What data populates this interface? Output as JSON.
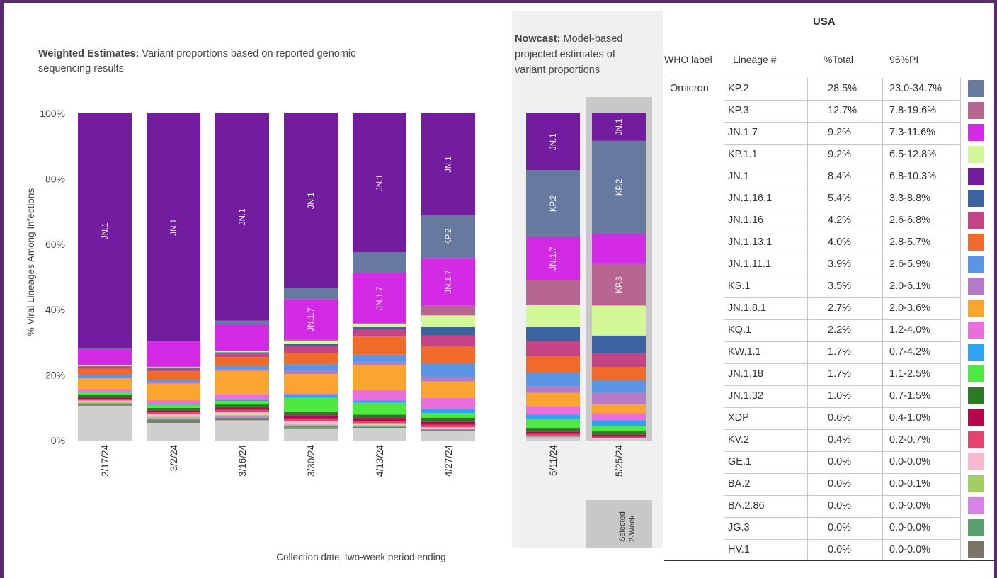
{
  "chart": {
    "weighted_title_bold": "Weighted Estimates:",
    "weighted_title_rest_1": " Variant proportions based on reported genomic",
    "weighted_title_rest_2": "sequencing results",
    "nowcast_title_bold": "Nowcast:",
    "nowcast_title_rest_1": " Model-based",
    "nowcast_title_rest_2": "projected estimates of",
    "nowcast_title_rest_3": "variant proportions",
    "selected_label_1": "Selected",
    "selected_label_2": "2-Week"
  },
  "chart_data": {
    "type": "bar",
    "stacked": true,
    "ylabel": "% Viral Lineages Among Infections",
    "xlabel": "Collection date, two-week period ending",
    "ylim": [
      0,
      100
    ],
    "yticks": [
      "0%",
      "20%",
      "40%",
      "60%",
      "80%",
      "100%"
    ],
    "categories": [
      "2/17/24",
      "3/2/24",
      "3/16/24",
      "3/30/24",
      "4/13/24",
      "4/27/24",
      "5/11/24",
      "5/25/24"
    ],
    "selected_category": "5/25/24",
    "nowcast_categories": [
      "5/11/24",
      "5/25/24"
    ],
    "series": [
      {
        "name": "Other",
        "color": "#cfcfcf",
        "values": [
          11.4,
          5.6,
          6.4,
          3.8,
          3.9,
          2.9,
          1.0,
          0.8
        ]
      },
      {
        "name": "HV.1",
        "color": "#7b7364",
        "values": [
          0.3,
          0.6,
          0.4,
          0.3,
          0.2,
          0.2,
          0.1,
          0.0
        ]
      },
      {
        "name": "JG.3",
        "color": "#5aa06e",
        "values": [
          0.3,
          0.5,
          0.5,
          0.3,
          0.2,
          0.2,
          0.1,
          0.0
        ]
      },
      {
        "name": "BA.2.86",
        "color": "#d782e6",
        "values": [
          0.3,
          0.4,
          0.4,
          0.3,
          0.2,
          0.2,
          0.1,
          0.0
        ]
      },
      {
        "name": "BA.2",
        "color": "#a3cf62",
        "values": [
          0.3,
          0.4,
          0.4,
          0.3,
          0.2,
          0.2,
          0.1,
          0.0
        ]
      },
      {
        "name": "GE.1",
        "color": "#f6b9cf",
        "values": [
          0.5,
          0.8,
          0.9,
          1.0,
          0.6,
          0.3,
          0.1,
          0.0
        ]
      },
      {
        "name": "KV.2",
        "color": "#e2446b",
        "values": [
          0.5,
          0.6,
          0.7,
          0.8,
          0.7,
          0.8,
          0.5,
          0.4
        ]
      },
      {
        "name": "XDP",
        "color": "#b5074d",
        "values": [
          0.5,
          0.6,
          0.8,
          1.0,
          0.9,
          0.9,
          0.7,
          0.6
        ]
      },
      {
        "name": "JN.1.32",
        "color": "#2c7a25",
        "values": [
          0.8,
          0.8,
          0.9,
          1.2,
          1.0,
          1.2,
          1.1,
          1.0
        ]
      },
      {
        "name": "JN.1.18",
        "color": "#4ee843",
        "values": [
          0.8,
          0.9,
          1.1,
          4.2,
          3.6,
          1.4,
          2.5,
          1.7
        ]
      },
      {
        "name": "KW.1.1",
        "color": "#2ea3f2",
        "values": [
          0.3,
          0.3,
          0.4,
          0.8,
          0.7,
          1.2,
          1.5,
          1.7
        ]
      },
      {
        "name": "KQ.1",
        "color": "#ea6edc",
        "values": [
          0.8,
          1.2,
          1.8,
          0.5,
          3.2,
          3.3,
          2.5,
          2.2
        ]
      },
      {
        "name": "JN.1.8.1",
        "color": "#f9a52f",
        "values": [
          3.5,
          5.2,
          7.3,
          6.0,
          7.5,
          5.0,
          4.0,
          2.7
        ]
      },
      {
        "name": "KS.1",
        "color": "#b77ac8",
        "values": [
          0.3,
          0.4,
          0.5,
          1.0,
          1.1,
          1.3,
          2.0,
          3.5
        ]
      },
      {
        "name": "JN.1.11.1",
        "color": "#5b95e6",
        "values": [
          0.8,
          0.8,
          1.1,
          2.0,
          2.2,
          4.2,
          4.0,
          3.9
        ]
      },
      {
        "name": "JN.1.13.1",
        "color": "#f06b2a",
        "values": [
          2.1,
          2.7,
          2.8,
          3.5,
          5.5,
          5.1,
          5.0,
          4.0
        ]
      },
      {
        "name": "JN.1.16",
        "color": "#c64385",
        "values": [
          0.6,
          0.8,
          1.1,
          2.2,
          2.3,
          3.3,
          4.5,
          4.2
        ]
      },
      {
        "name": "JN.1.16.1",
        "color": "#3a63a0",
        "values": [
          0.2,
          0.3,
          0.4,
          0.6,
          0.8,
          2.6,
          4.2,
          5.4
        ]
      },
      {
        "name": "KP.1.1",
        "color": "#d4f797",
        "values": [
          0.2,
          0.2,
          0.3,
          1.0,
          0.8,
          3.4,
          6.5,
          9.2
        ]
      },
      {
        "name": "KP.3",
        "color": "#b76690",
        "values": [
          0.1,
          0.2,
          0.1,
          0.3,
          0.2,
          2.9,
          7.5,
          12.7
        ]
      },
      {
        "name": "JN.1.7",
        "color": "#d32be5",
        "values": [
          5.3,
          7.9,
          8.3,
          12.5,
          15.2,
          14.4,
          12.9,
          9.2
        ]
      },
      {
        "name": "KP.2",
        "color": "#66799f",
        "values": [
          0.1,
          0.1,
          1.3,
          3.5,
          6.4,
          12.8,
          20.0,
          28.5
        ]
      },
      {
        "name": "JN.1",
        "color": "#721da0",
        "values": [
          77.0,
          71.7,
          65.5,
          53.8,
          42.4,
          30.8,
          17.0,
          8.4
        ]
      }
    ],
    "bar_labels": [
      {
        "category": "2/17/24",
        "series": "JN.1",
        "text": "JN.1"
      },
      {
        "category": "3/2/24",
        "series": "JN.1",
        "text": "JN.1"
      },
      {
        "category": "3/16/24",
        "series": "JN.1",
        "text": "JN.1"
      },
      {
        "category": "3/30/24",
        "series": "JN.1",
        "text": "JN.1"
      },
      {
        "category": "3/30/24",
        "series": "JN.1.7",
        "text": "JN.1.7"
      },
      {
        "category": "4/13/24",
        "series": "JN.1",
        "text": "JN.1"
      },
      {
        "category": "4/13/24",
        "series": "JN.1.7",
        "text": "JN.1.7"
      },
      {
        "category": "4/27/24",
        "series": "JN.1",
        "text": "JN.1"
      },
      {
        "category": "4/27/24",
        "series": "KP.2",
        "text": "KP.2"
      },
      {
        "category": "4/27/24",
        "series": "JN.1.7",
        "text": "JN.1.7"
      },
      {
        "category": "5/11/24",
        "series": "JN.1",
        "text": "JN.1"
      },
      {
        "category": "5/11/24",
        "series": "KP.2",
        "text": "KP.2"
      },
      {
        "category": "5/11/24",
        "series": "JN.1.7",
        "text": "JN.1.7"
      },
      {
        "category": "5/25/24",
        "series": "JN.1",
        "text": "JN.1"
      },
      {
        "category": "5/25/24",
        "series": "KP.2",
        "text": "KP.2"
      },
      {
        "category": "5/25/24",
        "series": "KP.3",
        "text": "KP.3"
      }
    ]
  },
  "table": {
    "title": "USA",
    "headers": {
      "who": "WHO label",
      "lineage": "Lineage #",
      "total": "%Total",
      "pi": "95%PI"
    },
    "who_label": "Omicron",
    "rows": [
      {
        "lineage": "KP.2",
        "total": "28.5%",
        "pi": "23.0-34.7%",
        "color": "#66799f"
      },
      {
        "lineage": "KP.3",
        "total": "12.7%",
        "pi": "7.8-19.6%",
        "color": "#b76690"
      },
      {
        "lineage": "JN.1.7",
        "total": "9.2%",
        "pi": "7.3-11.6%",
        "color": "#d32be5"
      },
      {
        "lineage": "KP.1.1",
        "total": "9.2%",
        "pi": "6.5-12.8%",
        "color": "#d4f797"
      },
      {
        "lineage": "JN.1",
        "total": "8.4%",
        "pi": "6.8-10.3%",
        "color": "#721da0"
      },
      {
        "lineage": "JN.1.16.1",
        "total": "5.4%",
        "pi": "3.3-8.8%",
        "color": "#3a63a0"
      },
      {
        "lineage": "JN.1.16",
        "total": "4.2%",
        "pi": "2.6-6.8%",
        "color": "#c64385"
      },
      {
        "lineage": "JN.1.13.1",
        "total": "4.0%",
        "pi": "2.8-5.7%",
        "color": "#f06b2a"
      },
      {
        "lineage": "JN.1.11.1",
        "total": "3.9%",
        "pi": "2.6-5.9%",
        "color": "#5b95e6"
      },
      {
        "lineage": "KS.1",
        "total": "3.5%",
        "pi": "2.0-6.1%",
        "color": "#b77ac8"
      },
      {
        "lineage": "JN.1.8.1",
        "total": "2.7%",
        "pi": "2.0-3.6%",
        "color": "#f9a52f"
      },
      {
        "lineage": "KQ.1",
        "total": "2.2%",
        "pi": "1.2-4.0%",
        "color": "#ea6edc"
      },
      {
        "lineage": "KW.1.1",
        "total": "1.7%",
        "pi": "0.7-4.2%",
        "color": "#2ea3f2"
      },
      {
        "lineage": "JN.1.18",
        "total": "1.7%",
        "pi": "1.1-2.5%",
        "color": "#4ee843"
      },
      {
        "lineage": "JN.1.32",
        "total": "1.0%",
        "pi": "0.7-1.5%",
        "color": "#2c7a25"
      },
      {
        "lineage": "XDP",
        "total": "0.6%",
        "pi": "0.4-1.0%",
        "color": "#b5074d"
      },
      {
        "lineage": "KV.2",
        "total": "0.4%",
        "pi": "0.2-0.7%",
        "color": "#e2446b"
      },
      {
        "lineage": "GE.1",
        "total": "0.0%",
        "pi": "0.0-0.0%",
        "color": "#f6b9cf"
      },
      {
        "lineage": "BA.2",
        "total": "0.0%",
        "pi": "0.0-0.1%",
        "color": "#a3cf62"
      },
      {
        "lineage": "BA.2.86",
        "total": "0.0%",
        "pi": "0.0-0.0%",
        "color": "#d782e6"
      },
      {
        "lineage": "JG.3",
        "total": "0.0%",
        "pi": "0.0-0.0%",
        "color": "#5aa06e"
      },
      {
        "lineage": "HV.1",
        "total": "0.0%",
        "pi": "0.0-0.0%",
        "color": "#7b7364"
      }
    ]
  }
}
